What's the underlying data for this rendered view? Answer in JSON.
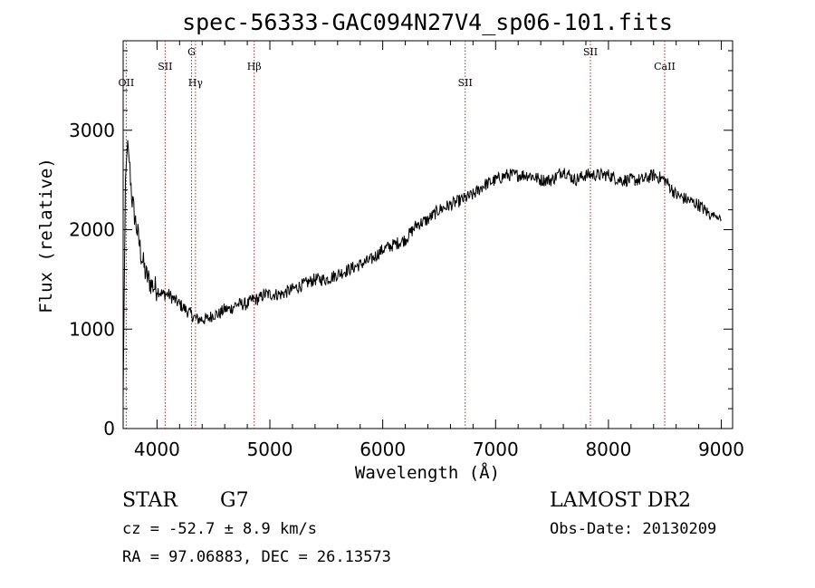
{
  "chart_data": {
    "type": "line",
    "title": "spec-56333-GAC094N27V4_sp06-101.fits",
    "xlabel": "Wavelength (Å)",
    "ylabel": "Flux (relative)",
    "xlim": [
      3700,
      9100
    ],
    "ylim": [
      0,
      3900
    ],
    "xticks": [
      4000,
      5000,
      6000,
      7000,
      8000,
      9000
    ],
    "yticks": [
      0,
      1000,
      2000,
      3000
    ],
    "grid": false,
    "series": [
      {
        "values_x": [
          3700,
          3720,
          3740,
          3760,
          3780,
          3800,
          3830,
          3860,
          3900,
          3950,
          4000,
          4050,
          4100,
          4150,
          4200,
          4250,
          4300,
          4350,
          4400,
          4450,
          4500,
          4550,
          4600,
          4650,
          4700,
          4750,
          4800,
          4850,
          4900,
          4950,
          5000,
          5100,
          5200,
          5300,
          5400,
          5500,
          5600,
          5700,
          5800,
          5900,
          6000,
          6100,
          6200,
          6300,
          6400,
          6500,
          6600,
          6700,
          6800,
          6900,
          7000,
          7100,
          7200,
          7300,
          7400,
          7500,
          7600,
          7650,
          7700,
          7800,
          7900,
          8000,
          8100,
          8200,
          8300,
          8400,
          8500,
          8600,
          8700,
          8800,
          8900,
          8950,
          9000
        ],
        "values_y": [
          300,
          2500,
          2900,
          2600,
          2300,
          2150,
          1950,
          1750,
          1550,
          1450,
          1400,
          1350,
          1350,
          1300,
          1250,
          1200,
          1150,
          1100,
          1100,
          1100,
          1150,
          1150,
          1200,
          1200,
          1250,
          1250,
          1250,
          1300,
          1300,
          1350,
          1350,
          1350,
          1400,
          1450,
          1500,
          1500,
          1550,
          1600,
          1650,
          1700,
          1800,
          1850,
          1900,
          2050,
          2100,
          2200,
          2250,
          2300,
          2350,
          2450,
          2500,
          2550,
          2550,
          2550,
          2500,
          2500,
          2600,
          2550,
          2500,
          2550,
          2550,
          2550,
          2500,
          2500,
          2500,
          2550,
          2500,
          2350,
          2300,
          2250,
          2150,
          2150,
          2100
        ]
      }
    ],
    "lines": [
      {
        "label": "OII",
        "x": 3727,
        "row": 3
      },
      {
        "label": "SII",
        "x": 4072,
        "row": 2
      },
      {
        "label": "G",
        "x": 4306,
        "row": 1
      },
      {
        "label": "Hγ",
        "x": 4341,
        "row": 3
      },
      {
        "label": "Hβ",
        "x": 4861,
        "row": 2
      },
      {
        "label": "SII",
        "x": 6731,
        "row": 3
      },
      {
        "label": "SII",
        "x": 7840,
        "row": 1
      },
      {
        "label": "CaII",
        "x": 8498,
        "row": 2
      }
    ]
  },
  "info": {
    "object_class": "STAR",
    "subclass": "G7",
    "survey": "LAMOST DR2",
    "cz": "cz = -52.7 ± 8.9 km/s",
    "obs_date": "Obs-Date: 20130209",
    "coords": "RA =  97.06883, DEC =  26.13573"
  },
  "colors": {
    "spectrum": "#000000",
    "line_marker": "#b22222",
    "axes": "#000000"
  }
}
